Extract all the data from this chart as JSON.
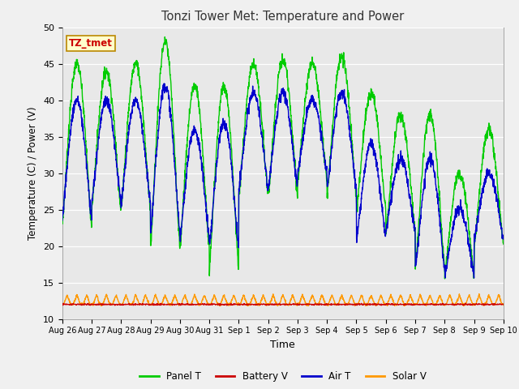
{
  "title": "Tonzi Tower Met: Temperature and Power",
  "xlabel": "Time",
  "ylabel": "Temperature (C) / Power (V)",
  "ylim": [
    10,
    50
  ],
  "yticks": [
    10,
    15,
    20,
    25,
    30,
    35,
    40,
    45,
    50
  ],
  "xtick_labels": [
    "Aug 26",
    "Aug 27",
    "Aug 28",
    "Aug 29",
    "Aug 30",
    "Aug 31",
    "Sep 1",
    "Sep 2",
    "Sep 3",
    "Sep 4",
    "Sep 5",
    "Sep 6",
    "Sep 7",
    "Sep 8",
    "Sep 9",
    "Sep 10"
  ],
  "legend_labels": [
    "Panel T",
    "Battery V",
    "Air T",
    "Solar V"
  ],
  "legend_colors": [
    "#00cc00",
    "#cc0000",
    "#0000cc",
    "#ff9900"
  ],
  "panel_color": "#00cc00",
  "battery_color": "#cc0000",
  "air_color": "#0000cc",
  "solar_color": "#ff9900",
  "annotation_text": "TZ_tmet",
  "annotation_color": "#cc0000",
  "annotation_bg": "#ffffcc",
  "plot_bg_color": "#e8e8e8",
  "fig_bg_color": "#f0f0f0",
  "n_days": 15,
  "pts_per_day": 144,
  "day_peaks_panel": [
    45,
    44,
    45,
    48,
    42,
    42,
    45,
    45.5,
    45,
    46,
    41,
    38,
    38,
    30,
    36
  ],
  "day_troughs_panel": [
    23,
    25,
    25,
    20,
    20,
    17,
    27,
    27,
    29,
    27,
    25,
    22,
    17,
    16,
    20
  ],
  "day_peaks_air": [
    40,
    40,
    40,
    42,
    36,
    37,
    41,
    41,
    40,
    41,
    34,
    32,
    32,
    25,
    30
  ],
  "day_troughs_air": [
    24,
    26,
    26,
    22,
    21,
    20,
    28,
    28,
    30,
    28,
    21,
    22,
    17,
    16,
    21
  ]
}
